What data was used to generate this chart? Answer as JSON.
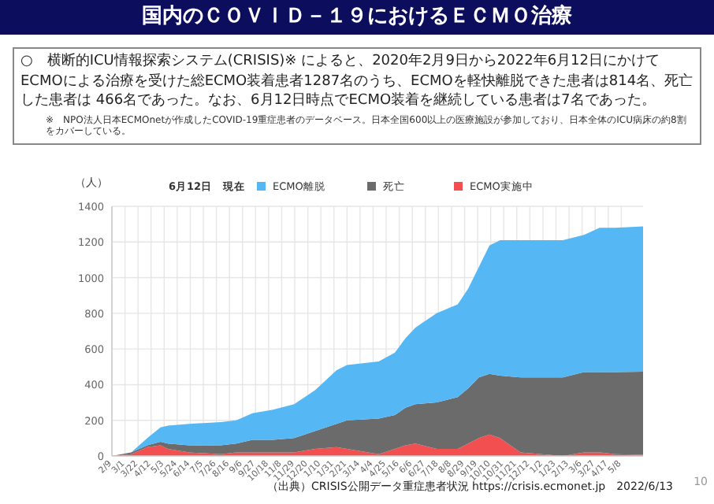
{
  "chart_data": {
    "type": "area",
    "stacked": true,
    "title": "国内のＣＯＶＩＤ－１９におけるＥＣＭＯ治療",
    "subtitle": "○　横断的ICU情報探索システム(CRISIS)※ によると、2020年2月9日から2022年6月12日にかけてECMOによる治療を受けた総ECMO装着患者1287名のうち、ECMOを軽快離脱できた患者は814名、死亡した患者は 466名であった。なお、6月12日時点でECMO装着を継続している患者は7名であった。",
    "annotations": [
      "※　NPO法人日本ECMOnetが作成したCOVID-19重症患者のデータベース。日本全国600以上の医療施設が参加しており、日本全体のICU病床の約8割をカバーしている。",
      "（出典）CRISIS公開データ重症患者状況 https://crisis.ecmonet.jp　2022/6/13",
      "10"
    ],
    "ylabel": "（人）",
    "legend_title": "6月12日　現在",
    "legend": "top",
    "grid": true,
    "x": [
      "2020-02-09",
      "2020-03-11",
      "2020-04-06",
      "2020-04-27",
      "2020-05-09",
      "2020-06-12",
      "2020-08-02",
      "2020-08-27",
      "2020-09-22",
      "2020-10-25",
      "2020-11-28",
      "2021-01-01",
      "2021-02-04",
      "2021-02-21",
      "2021-04-13",
      "2021-05-09",
      "2021-05-26",
      "2021-06-11",
      "2021-07-15",
      "2021-08-18",
      "2021-09-04",
      "2021-09-21",
      "2021-10-08",
      "2021-10-25",
      "2021-11-27",
      "2021-12-31",
      "2022-02-03",
      "2022-03-09",
      "2022-04-03",
      "2022-04-28",
      "2022-06-12"
    ],
    "series": [
      {
        "name": "ECMO実施中",
        "color": "#f25050",
        "values": [
          0,
          10,
          50,
          60,
          40,
          20,
          10,
          20,
          20,
          20,
          20,
          40,
          50,
          40,
          10,
          40,
          60,
          70,
          40,
          40,
          70,
          100,
          120,
          100,
          20,
          10,
          0,
          20,
          20,
          10,
          7
        ]
      },
      {
        "name": "死亡",
        "color": "#6b6b6b",
        "values": [
          0,
          10,
          10,
          20,
          30,
          40,
          50,
          50,
          70,
          70,
          80,
          100,
          130,
          160,
          200,
          190,
          210,
          220,
          260,
          290,
          310,
          340,
          340,
          350,
          420,
          430,
          440,
          450,
          450,
          460,
          466
        ]
      },
      {
        "name": "ECMO離脱",
        "color": "#55b7f3",
        "values": [
          0,
          0,
          40,
          80,
          100,
          120,
          130,
          130,
          150,
          170,
          190,
          230,
          300,
          310,
          320,
          350,
          390,
          430,
          500,
          520,
          560,
          620,
          720,
          760,
          770,
          770,
          770,
          770,
          810,
          810,
          814
        ]
      }
    ],
    "xlim": [
      "2020-02-09",
      "2022-06-12"
    ],
    "xticks": [
      {
        "value": "2020-02-09",
        "label": "2/9"
      },
      {
        "value": "2020-03-01",
        "label": "3/1"
      },
      {
        "value": "2020-03-22",
        "label": "3/22"
      },
      {
        "value": "2020-04-12",
        "label": "4/12"
      },
      {
        "value": "2020-05-03",
        "label": "5/3"
      },
      {
        "value": "2020-05-24",
        "label": "5/24"
      },
      {
        "value": "2020-06-14",
        "label": "6/14"
      },
      {
        "value": "2020-07-05",
        "label": "7/5"
      },
      {
        "value": "2020-07-26",
        "label": "7/26"
      },
      {
        "value": "2020-08-16",
        "label": "8/16"
      },
      {
        "value": "2020-09-06",
        "label": "9/6"
      },
      {
        "value": "2020-09-27",
        "label": "9/27"
      },
      {
        "value": "2020-10-18",
        "label": "10/18"
      },
      {
        "value": "2020-11-08",
        "label": "11/8"
      },
      {
        "value": "2020-11-29",
        "label": "11/29"
      },
      {
        "value": "2020-12-20",
        "label": "12/20"
      },
      {
        "value": "2021-01-10",
        "label": "1/10"
      },
      {
        "value": "2021-01-31",
        "label": "1/31"
      },
      {
        "value": "2021-02-21",
        "label": "2/21"
      },
      {
        "value": "2021-03-14",
        "label": "3/14"
      },
      {
        "value": "2021-04-04",
        "label": "4/4"
      },
      {
        "value": "2021-04-25",
        "label": "4/25"
      },
      {
        "value": "2021-05-16",
        "label": "5/16"
      },
      {
        "value": "2021-06-06",
        "label": "6/6"
      },
      {
        "value": "2021-06-27",
        "label": "6/27"
      },
      {
        "value": "2021-07-18",
        "label": "7/18"
      },
      {
        "value": "2021-08-08",
        "label": "8/8"
      },
      {
        "value": "2021-08-29",
        "label": "8/29"
      },
      {
        "value": "2021-09-19",
        "label": "9/19"
      },
      {
        "value": "2021-10-10",
        "label": "10/10"
      },
      {
        "value": "2021-10-31",
        "label": "10/31"
      },
      {
        "value": "2021-11-21",
        "label": "11/21"
      },
      {
        "value": "2021-12-12",
        "label": "12/12"
      },
      {
        "value": "2022-01-02",
        "label": "1/2"
      },
      {
        "value": "2022-01-23",
        "label": "1/23"
      },
      {
        "value": "2022-02-13",
        "label": "2/13"
      },
      {
        "value": "2022-03-06",
        "label": "3/6"
      },
      {
        "value": "2022-03-27",
        "label": "3/27"
      },
      {
        "value": "2022-04-17",
        "label": "4/17"
      },
      {
        "value": "2022-05-08",
        "label": "5/8"
      }
    ],
    "ylim": [
      0,
      1400
    ],
    "yticks": [
      0,
      200,
      400,
      600,
      800,
      1000,
      1200,
      1400
    ]
  }
}
